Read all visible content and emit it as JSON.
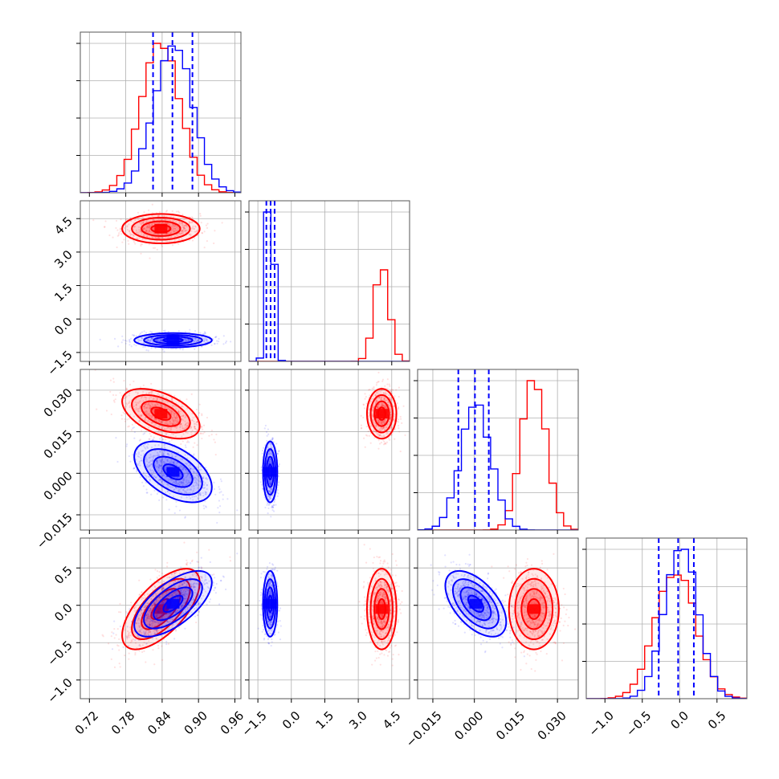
{
  "chart_data": {
    "type": "corner",
    "colors": {
      "series_a": "#ff0000",
      "series_b": "#0000ff"
    },
    "grid": true,
    "parameters": [
      {
        "id": "p0",
        "range": [
          0.705,
          0.97
        ],
        "ticks": [
          "0.72",
          "0.78",
          "0.84",
          "0.90",
          "0.96"
        ],
        "tick_values": [
          0.72,
          0.78,
          0.84,
          0.9,
          0.96
        ]
      },
      {
        "id": "p1",
        "range": [
          -1.9,
          5.3
        ],
        "ticks": [
          "−1.5",
          "0.0",
          "1.5",
          "3.0",
          "4.5"
        ],
        "tick_values": [
          -1.5,
          0.0,
          1.5,
          3.0,
          4.5
        ]
      },
      {
        "id": "p2",
        "range": [
          -0.0205,
          0.0375
        ],
        "ticks": [
          "−0.015",
          "0.000",
          "0.015",
          "0.030"
        ],
        "tick_values": [
          -0.015,
          0.0,
          0.015,
          0.03
        ]
      },
      {
        "id": "p3",
        "range": [
          -1.25,
          0.9
        ],
        "ticks": [
          "−1.0",
          "−0.5",
          "0.0",
          "0.5"
        ],
        "tick_values": [
          -1.0,
          -0.5,
          0.0,
          0.5
        ]
      }
    ],
    "series": [
      {
        "name": "",
        "color": "#ff0000",
        "mean": [
          0.838,
          4.05,
          0.0215,
          -0.05
        ],
        "sd": [
          0.032,
          0.33,
          0.0045,
          0.27
        ],
        "corr": {
          "0-2": -0.5,
          "0-3": 0.65,
          "2-3": 0.0
        }
      },
      {
        "name": "",
        "color": "#0000ff",
        "mean": [
          0.858,
          -0.95,
          0.0005,
          0.02
        ],
        "sd": [
          0.032,
          0.16,
          0.0055,
          0.22
        ],
        "corr": {
          "0-2": -0.5,
          "0-3": 0.65,
          "2-3": -0.55
        }
      }
    ],
    "quantile_lines_blue": {
      "p0": [
        0.825,
        0.857,
        0.89
      ],
      "p1": [
        -1.12,
        -0.93,
        -0.75
      ],
      "p2": [
        -0.0058,
        0.0002,
        0.0052
      ],
      "p3": [
        -0.28,
        -0.02,
        0.19
      ]
    }
  }
}
